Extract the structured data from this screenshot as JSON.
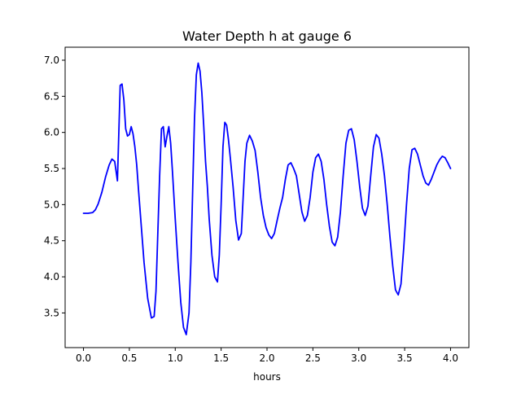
{
  "chart_data": {
    "type": "line",
    "title": "Water Depth h at gauge 6",
    "xlabel": "hours",
    "ylabel": "",
    "xlim": [
      -0.2,
      4.2
    ],
    "ylim": [
      3.02,
      7.18
    ],
    "x_ticks": [
      0.0,
      0.5,
      1.0,
      1.5,
      2.0,
      2.5,
      3.0,
      3.5,
      4.0
    ],
    "x_tick_labels": [
      "0.0",
      "0.5",
      "1.0",
      "1.5",
      "2.0",
      "2.5",
      "3.0",
      "3.5",
      "4.0"
    ],
    "y_ticks": [
      3.5,
      4.0,
      4.5,
      5.0,
      5.5,
      6.0,
      6.5,
      7.0
    ],
    "y_tick_labels": [
      "3.5",
      "4.0",
      "4.5",
      "5.0",
      "5.5",
      "6.0",
      "6.5",
      "7.0"
    ],
    "grid": false,
    "line_color": "#0000ff",
    "series": [
      {
        "x": [
          0.0,
          0.05,
          0.1,
          0.13,
          0.16,
          0.2,
          0.24,
          0.28,
          0.31,
          0.34,
          0.37,
          0.4,
          0.42,
          0.44,
          0.46,
          0.48,
          0.5,
          0.52,
          0.54,
          0.56,
          0.58,
          0.6,
          0.63,
          0.66,
          0.7,
          0.74,
          0.77,
          0.79,
          0.81,
          0.83,
          0.85,
          0.87,
          0.89,
          0.91,
          0.93,
          0.95,
          0.97,
          1.0,
          1.03,
          1.06,
          1.09,
          1.12,
          1.15,
          1.17,
          1.19,
          1.21,
          1.23,
          1.25,
          1.27,
          1.29,
          1.31,
          1.33,
          1.35,
          1.37,
          1.4,
          1.43,
          1.46,
          1.48,
          1.5,
          1.52,
          1.54,
          1.56,
          1.58,
          1.6,
          1.63,
          1.66,
          1.69,
          1.72,
          1.74,
          1.76,
          1.78,
          1.81,
          1.84,
          1.87,
          1.9,
          1.93,
          1.96,
          1.99,
          2.02,
          2.05,
          2.08,
          2.11,
          2.14,
          2.17,
          2.2,
          2.23,
          2.26,
          2.29,
          2.32,
          2.35,
          2.38,
          2.41,
          2.44,
          2.47,
          2.5,
          2.53,
          2.56,
          2.59,
          2.62,
          2.65,
          2.68,
          2.71,
          2.74,
          2.77,
          2.8,
          2.83,
          2.86,
          2.89,
          2.92,
          2.95,
          2.98,
          3.01,
          3.04,
          3.07,
          3.1,
          3.13,
          3.16,
          3.19,
          3.22,
          3.25,
          3.28,
          3.31,
          3.34,
          3.37,
          3.4,
          3.43,
          3.46,
          3.49,
          3.52,
          3.55,
          3.58,
          3.61,
          3.64,
          3.67,
          3.7,
          3.73,
          3.76,
          3.79,
          3.82,
          3.85,
          3.88,
          3.91,
          3.94,
          3.97,
          4.0
        ],
        "y": [
          4.88,
          4.88,
          4.89,
          4.93,
          5.01,
          5.17,
          5.38,
          5.55,
          5.63,
          5.6,
          5.33,
          6.65,
          6.67,
          6.45,
          6.05,
          5.95,
          5.97,
          6.08,
          5.98,
          5.8,
          5.55,
          5.2,
          4.7,
          4.2,
          3.7,
          3.43,
          3.45,
          3.8,
          4.6,
          5.4,
          6.05,
          6.08,
          5.8,
          5.95,
          6.08,
          5.85,
          5.45,
          4.8,
          4.2,
          3.65,
          3.3,
          3.2,
          3.5,
          4.2,
          5.2,
          6.2,
          6.8,
          6.96,
          6.85,
          6.55,
          6.1,
          5.6,
          5.25,
          4.8,
          4.3,
          4.0,
          3.93,
          4.3,
          5.0,
          5.8,
          6.14,
          6.1,
          5.9,
          5.65,
          5.25,
          4.78,
          4.51,
          4.6,
          5.1,
          5.6,
          5.85,
          5.96,
          5.88,
          5.75,
          5.45,
          5.1,
          4.85,
          4.68,
          4.58,
          4.53,
          4.6,
          4.78,
          4.95,
          5.1,
          5.35,
          5.55,
          5.58,
          5.5,
          5.4,
          5.15,
          4.9,
          4.77,
          4.85,
          5.1,
          5.45,
          5.65,
          5.7,
          5.6,
          5.35,
          5.0,
          4.7,
          4.48,
          4.43,
          4.55,
          4.9,
          5.4,
          5.85,
          6.03,
          6.05,
          5.9,
          5.6,
          5.25,
          4.95,
          4.85,
          4.98,
          5.4,
          5.8,
          5.97,
          5.92,
          5.7,
          5.4,
          5.0,
          4.55,
          4.15,
          3.82,
          3.75,
          3.9,
          4.4,
          5.0,
          5.5,
          5.76,
          5.78,
          5.7,
          5.55,
          5.4,
          5.3,
          5.27,
          5.35,
          5.45,
          5.55,
          5.62,
          5.67,
          5.65,
          5.58,
          5.5
        ]
      }
    ]
  }
}
